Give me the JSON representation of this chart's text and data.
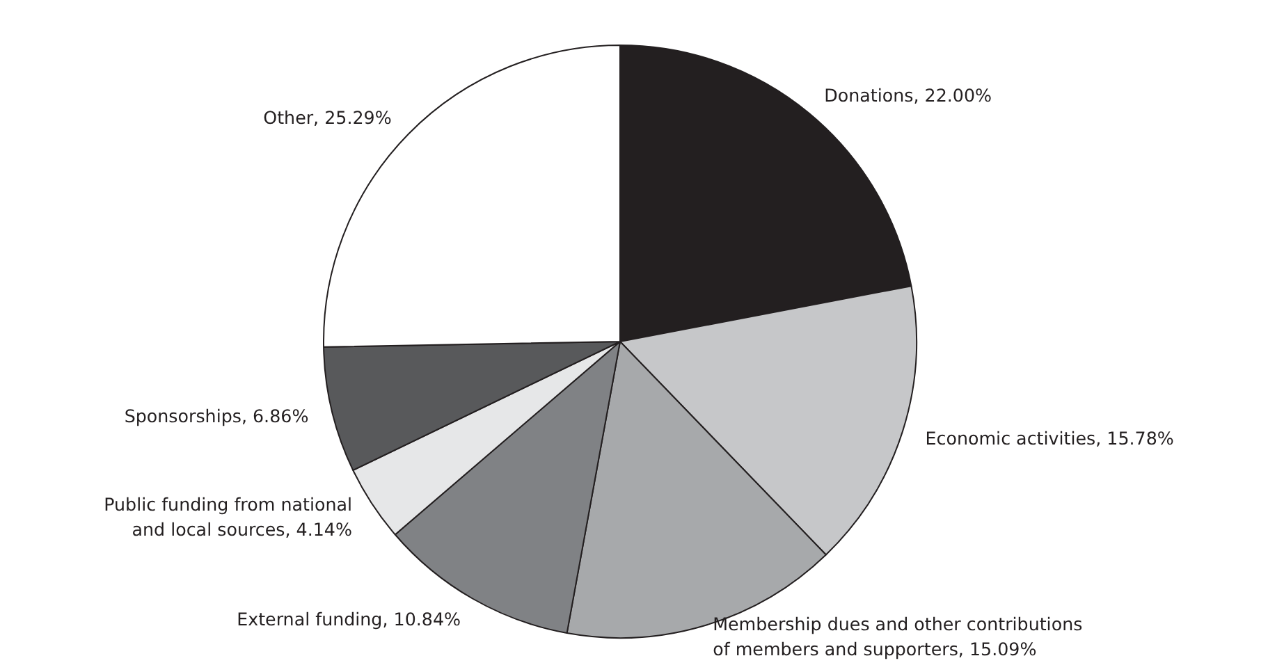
{
  "chart_data": {
    "type": "pie",
    "categories": [
      "Donations",
      "Economic activities",
      "Membership dues and other contributions of members and supporters",
      "External funding",
      "Public funding from national and local sources",
      "Sponsorships",
      "Other"
    ],
    "values": [
      22.0,
      15.78,
      15.09,
      10.84,
      4.14,
      6.86,
      25.29
    ],
    "value_labels": [
      "22.00%",
      "15.78%",
      "15.09%",
      "10.84%",
      "4.14%",
      "6.86%",
      "25.29%"
    ],
    "colors": [
      "#231f20",
      "#c6c7c9",
      "#a7a9ab",
      "#808285",
      "#e6e7e8",
      "#58595b",
      "#ffffff"
    ]
  }
}
